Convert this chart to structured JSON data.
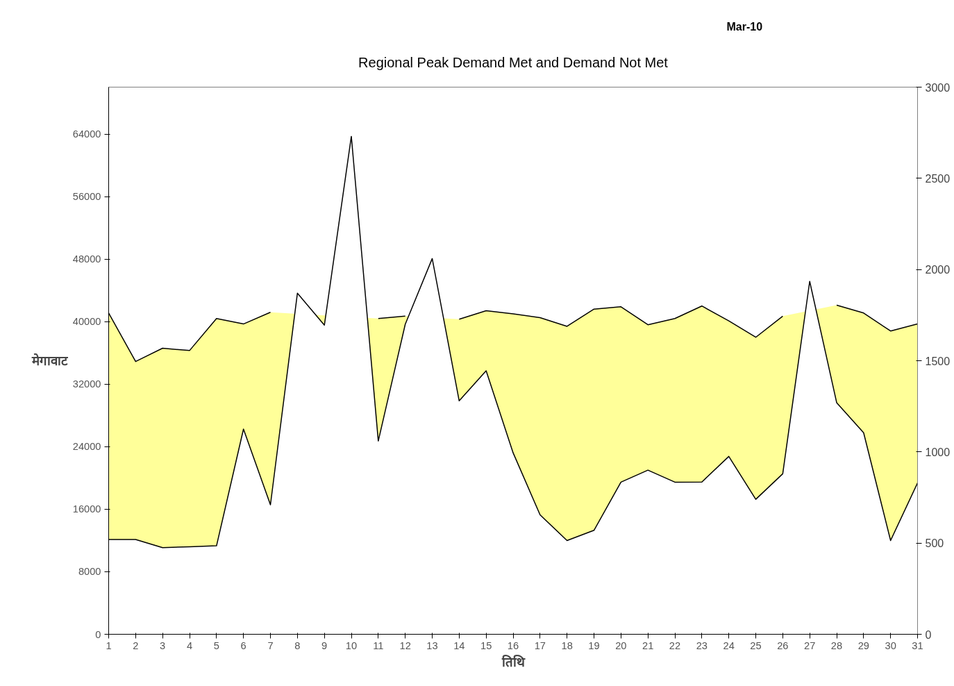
{
  "chart_data": {
    "type": "area",
    "title": "Regional Peak Demand Met and Demand Not Met",
    "xlabel": "तिथि",
    "ylabel": "मेगावाट",
    "annotations": [
      "Mar-10"
    ],
    "x": [
      1,
      2,
      3,
      4,
      5,
      6,
      7,
      8,
      9,
      10,
      11,
      12,
      13,
      14,
      15,
      16,
      17,
      18,
      19,
      20,
      21,
      22,
      23,
      24,
      25,
      26,
      27,
      28,
      29,
      30,
      31
    ],
    "xlim": [
      1,
      31
    ],
    "xticks": [
      1,
      2,
      3,
      4,
      5,
      6,
      7,
      8,
      9,
      10,
      11,
      12,
      13,
      14,
      15,
      16,
      17,
      18,
      19,
      20,
      21,
      22,
      23,
      24,
      25,
      26,
      27,
      28,
      29,
      30,
      31
    ],
    "ylim": [
      0,
      70000
    ],
    "yticks": [
      0,
      8000,
      16000,
      24000,
      32000,
      40000,
      48000,
      56000,
      64000
    ],
    "y2lim": [
      0,
      3000
    ],
    "y2ticks": [
      0,
      500,
      1000,
      1500,
      2000,
      2500,
      3000
    ],
    "grid": false,
    "series": [
      {
        "color": "#ffff99",
        "values": [
          41100,
          34900,
          36600,
          36300,
          40400,
          39700,
          41200,
          null,
          null,
          null,
          40400,
          40700,
          null,
          40300,
          41400,
          41000,
          40500,
          39400,
          41600,
          41900,
          39600,
          40400,
          42000,
          40100,
          38000,
          40700,
          null,
          42100,
          41100,
          38800,
          39700
        ]
      },
      {
        "color": "#ffffff",
        "axis": "y2",
        "values": [
          520,
          520,
          475,
          480,
          485,
          1125,
          710,
          1870,
          1695,
          2730,
          1060,
          1700,
          2060,
          1280,
          1445,
          995,
          655,
          514,
          570,
          834,
          900,
          834,
          835,
          975,
          740,
          880,
          1935,
          1270,
          1105,
          514,
          830
        ]
      }
    ]
  }
}
